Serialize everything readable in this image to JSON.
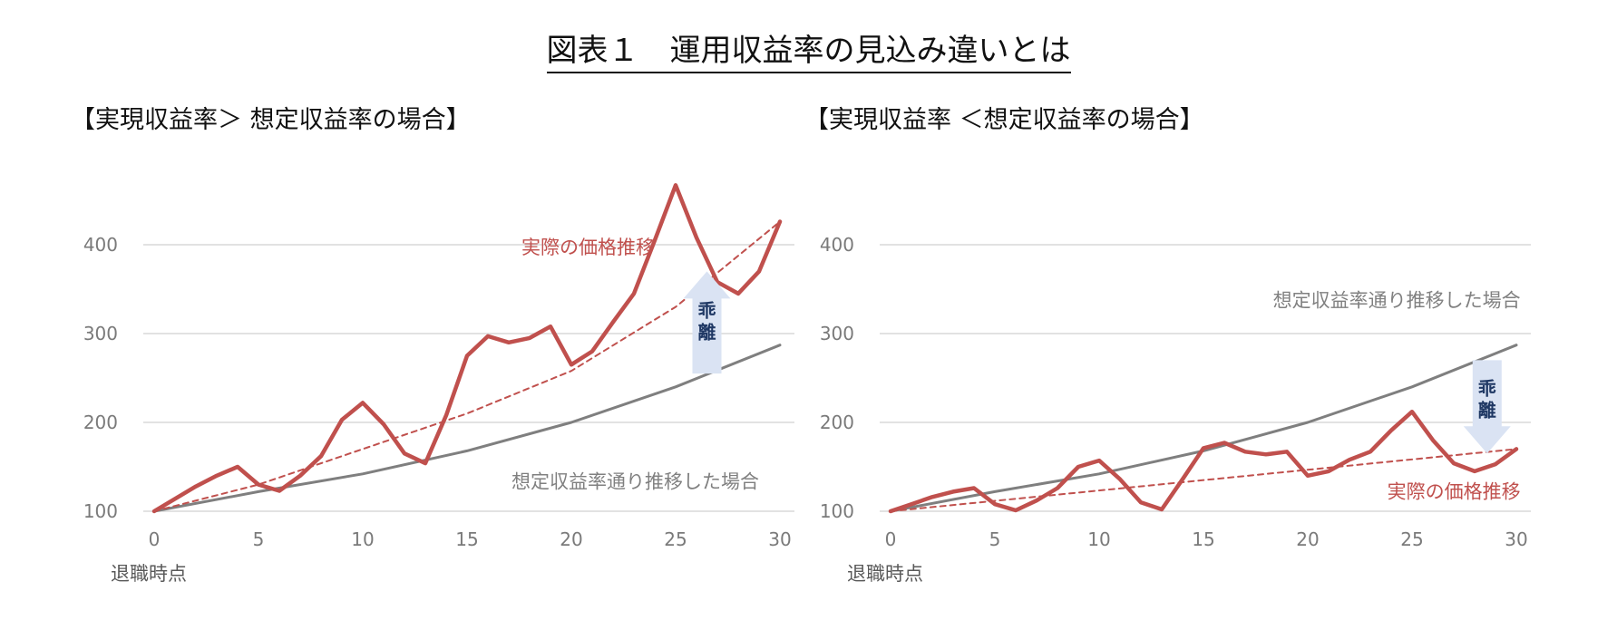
{
  "title": "図表１　運用収益率の見込み違いとは",
  "colors": {
    "actual": "#c0504d",
    "assumed": "#7f7f7f",
    "arrow": "#dae3f3",
    "gap_text": "#1f3864"
  },
  "chart_data": [
    {
      "type": "line",
      "panel_title": "【実現収益率＞ 想定収益率の場合】",
      "xlabel": "退職時点",
      "x_ticks": [
        0,
        5,
        10,
        15,
        20,
        25,
        30
      ],
      "y_ticks": [
        100,
        200,
        300,
        400
      ],
      "xlim": [
        0,
        30
      ],
      "ylim": [
        100,
        400
      ],
      "grid": true,
      "gap_label": [
        "乖",
        "離"
      ],
      "gap_direction": "up",
      "series": [
        {
          "name": "実際の価格推移",
          "style": "solid-thick",
          "x": [
            0,
            1,
            2,
            3,
            4,
            5,
            6,
            7,
            8,
            9,
            10,
            11,
            12,
            13,
            14,
            15,
            16,
            17,
            18,
            19,
            20,
            21,
            22,
            23,
            24,
            25,
            26,
            27,
            28,
            29,
            30
          ],
          "y": [
            100,
            114,
            128,
            140,
            150,
            130,
            123,
            140,
            162,
            203,
            222,
            198,
            165,
            154,
            208,
            275,
            297,
            290,
            295,
            308,
            265,
            280,
            313,
            345,
            405,
            467,
            408,
            358,
            345,
            370,
            426
          ]
        },
        {
          "name": "",
          "style": "dashed",
          "x": [
            0,
            5,
            10,
            15,
            20,
            25,
            30
          ],
          "y": [
            100,
            130,
            170,
            210,
            258,
            330,
            426
          ]
        },
        {
          "name": "想定収益率通り推移した場合",
          "style": "solid-thin",
          "x": [
            0,
            5,
            10,
            15,
            20,
            25,
            30
          ],
          "y": [
            100,
            122,
            142,
            168,
            200,
            240,
            287
          ]
        }
      ]
    },
    {
      "type": "line",
      "panel_title": "【実現収益率 ＜想定収益率の場合】",
      "xlabel": "退職時点",
      "x_ticks": [
        0,
        5,
        10,
        15,
        20,
        25,
        30
      ],
      "y_ticks": [
        100,
        200,
        300,
        400
      ],
      "xlim": [
        0,
        30
      ],
      "ylim": [
        100,
        400
      ],
      "grid": true,
      "gap_label": [
        "乖",
        "離"
      ],
      "gap_direction": "down",
      "series": [
        {
          "name": "実際の価格推移",
          "style": "solid-thick",
          "x": [
            0,
            1,
            2,
            3,
            4,
            5,
            6,
            7,
            8,
            9,
            10,
            11,
            12,
            13,
            14,
            15,
            16,
            17,
            18,
            19,
            20,
            21,
            22,
            23,
            24,
            25,
            26,
            27,
            28,
            29,
            30
          ],
          "y": [
            100,
            108,
            116,
            122,
            126,
            108,
            101,
            112,
            126,
            150,
            157,
            136,
            110,
            102,
            136,
            171,
            177,
            167,
            164,
            167,
            140,
            145,
            158,
            167,
            191,
            212,
            180,
            154,
            145,
            153,
            170
          ]
        },
        {
          "name": "",
          "style": "dashed",
          "x": [
            0,
            30
          ],
          "y": [
            100,
            170
          ]
        },
        {
          "name": "想定収益率通り推移した場合",
          "style": "solid-thin",
          "x": [
            0,
            5,
            10,
            15,
            20,
            25,
            30
          ],
          "y": [
            100,
            122,
            142,
            168,
            200,
            240,
            287
          ]
        }
      ]
    }
  ]
}
